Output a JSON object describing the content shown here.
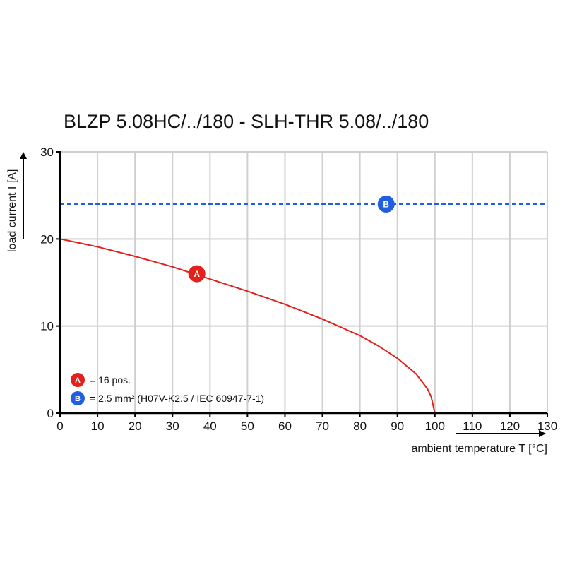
{
  "chart_data": {
    "type": "line",
    "title": "BLZP 5.08HC/../180 - SLH-THR 5.08/../180",
    "xlabel": "ambient temperature T [°C]",
    "ylabel": "load current I [A]",
    "xlim": [
      0,
      130
    ],
    "ylim": [
      0,
      30
    ],
    "x_ticks": [
      0,
      10,
      20,
      30,
      40,
      50,
      60,
      70,
      80,
      90,
      100,
      110,
      120,
      130
    ],
    "y_ticks": [
      0,
      10,
      20,
      30
    ],
    "grid": true,
    "series": [
      {
        "name": "A",
        "color": "#e3201b",
        "style": "solid",
        "marker_at": [
          36.5,
          16
        ],
        "x": [
          0,
          10,
          20,
          30,
          40,
          50,
          60,
          70,
          80,
          85,
          90,
          95,
          98,
          99,
          100
        ],
        "y": [
          20,
          19.1,
          18.0,
          16.8,
          15.4,
          14.0,
          12.5,
          10.8,
          8.9,
          7.7,
          6.3,
          4.5,
          2.8,
          1.9,
          0
        ]
      },
      {
        "name": "B",
        "color": "#1f5fe0",
        "style": "dashed",
        "marker_at": [
          87,
          24
        ],
        "x": [
          0,
          130
        ],
        "y": [
          24,
          24
        ]
      }
    ],
    "legend": [
      {
        "marker": "A",
        "color": "#e3201b",
        "text": "= 16 pos."
      },
      {
        "marker": "B",
        "color": "#1f5fe0",
        "text": "= 2.5 mm² (H07V-K2.5 / IEC 60947-7-1)"
      }
    ],
    "legend_position": "bottom-left"
  }
}
